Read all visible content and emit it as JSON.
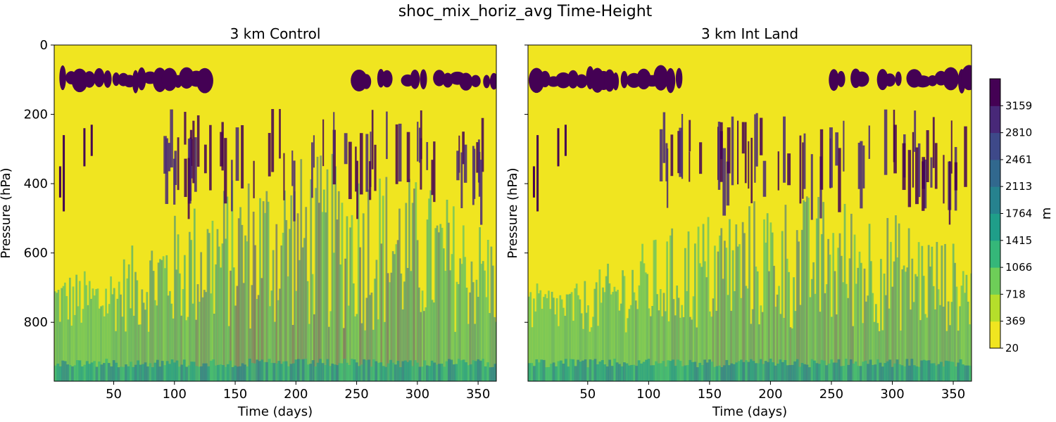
{
  "chart_data": {
    "type": "heatmap",
    "title": "shoc_mix_horiz_avg Time-Height",
    "colormap": "viridis_r",
    "colors": [
      "#f0e520",
      "#b5de2b",
      "#6ece58",
      "#35b779",
      "#1f9e89",
      "#26828e",
      "#31688e",
      "#3e4989",
      "#482878",
      "#440154"
    ],
    "colorbar": {
      "label": "m",
      "range": [
        20,
        3508
      ],
      "ticks": [
        20,
        369,
        718,
        1066,
        1415,
        1764,
        2113,
        2461,
        2810,
        3159
      ]
    },
    "panels": [
      {
        "title": "3 km Control",
        "xlabel": "Time (days)",
        "ylabel": "Pressure (hPa)",
        "xlim": [
          1,
          365
        ],
        "ylim": [
          970,
          0
        ],
        "xticks": [
          50,
          100,
          150,
          200,
          250,
          300,
          350
        ],
        "yticks": [
          0,
          200,
          400,
          600,
          800
        ]
      },
      {
        "title": "3 km Int Land",
        "xlabel": "Time (days)",
        "ylabel": "Pressure (hPa)",
        "xlim": [
          1,
          365
        ],
        "ylim": [
          970,
          0
        ],
        "xticks": [
          50,
          100,
          150,
          200,
          250,
          300,
          350
        ],
        "yticks": [
          0,
          200,
          400,
          600,
          800
        ],
        "ytick_labels_shared": true
      }
    ]
  }
}
